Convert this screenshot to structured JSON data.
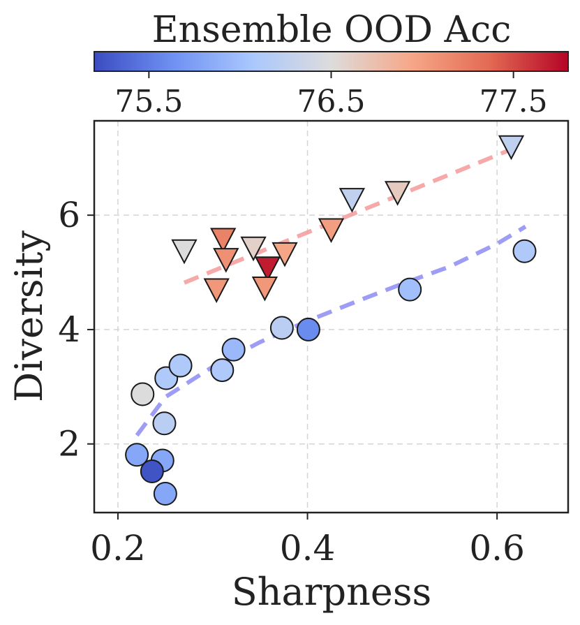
{
  "chart_data": {
    "type": "scatter",
    "xlabel": "Sharpness",
    "ylabel": "Diversity",
    "xlim": [
      0.175,
      0.675
    ],
    "ylim": [
      0.8,
      7.65
    ],
    "xticks": [
      0.2,
      0.4,
      0.6
    ],
    "xtick_labels": [
      "0.2",
      "0.4",
      "0.6"
    ],
    "yticks": [
      2,
      4,
      6
    ],
    "ytick_labels": [
      "2",
      "4",
      "6"
    ],
    "grid": true,
    "colorbar": {
      "title": "Ensemble OOD Acc",
      "min": 75.2,
      "max": 77.8,
      "ticks": [
        75.5,
        76.5,
        77.5
      ],
      "tick_labels": [
        "75.5",
        "76.5",
        "77.5"
      ],
      "colormap": [
        "#3b4cc0",
        "#6f91f3",
        "#aac7fd",
        "#dddcdc",
        "#f6a889",
        "#e36a53",
        "#b40426"
      ]
    },
    "series": [
      {
        "name": "circles",
        "marker": "circle",
        "trend_color": "#8c8cf5",
        "trend": [
          [
            0.22,
            2.15
          ],
          [
            0.25,
            2.82
          ],
          [
            0.3,
            3.35
          ],
          [
            0.35,
            3.78
          ],
          [
            0.4,
            4.15
          ],
          [
            0.45,
            4.48
          ],
          [
            0.5,
            4.8
          ],
          [
            0.55,
            5.1
          ],
          [
            0.6,
            5.5
          ],
          [
            0.63,
            5.8
          ]
        ],
        "points": [
          {
            "x": 0.226,
            "y": 2.87,
            "acc": 76.5
          },
          {
            "x": 0.251,
            "y": 3.15,
            "acc": 76.1
          },
          {
            "x": 0.266,
            "y": 3.37,
            "acc": 76.1
          },
          {
            "x": 0.31,
            "y": 3.29,
            "acc": 76.1
          },
          {
            "x": 0.322,
            "y": 3.65,
            "acc": 75.95
          },
          {
            "x": 0.373,
            "y": 4.03,
            "acc": 76.2
          },
          {
            "x": 0.401,
            "y": 4.0,
            "acc": 75.6
          },
          {
            "x": 0.249,
            "y": 2.36,
            "acc": 76.2
          },
          {
            "x": 0.22,
            "y": 1.81,
            "acc": 75.8
          },
          {
            "x": 0.247,
            "y": 1.71,
            "acc": 75.8
          },
          {
            "x": 0.236,
            "y": 1.52,
            "acc": 75.25
          },
          {
            "x": 0.25,
            "y": 1.13,
            "acc": 75.8
          },
          {
            "x": 0.508,
            "y": 4.7,
            "acc": 76.0
          },
          {
            "x": 0.629,
            "y": 5.37,
            "acc": 76.1
          }
        ]
      },
      {
        "name": "triangles",
        "marker": "triangle-down",
        "trend_color": "#f49a9a",
        "trend": [
          [
            0.27,
            4.82
          ],
          [
            0.615,
            7.15
          ]
        ],
        "points": [
          {
            "x": 0.27,
            "y": 5.4,
            "acc": 76.5
          },
          {
            "x": 0.311,
            "y": 5.6,
            "acc": 77.2
          },
          {
            "x": 0.314,
            "y": 5.25,
            "acc": 77.1
          },
          {
            "x": 0.343,
            "y": 5.45,
            "acc": 76.6
          },
          {
            "x": 0.376,
            "y": 5.35,
            "acc": 76.95
          },
          {
            "x": 0.358,
            "y": 5.1,
            "acc": 77.7
          },
          {
            "x": 0.304,
            "y": 4.72,
            "acc": 77.05
          },
          {
            "x": 0.355,
            "y": 4.75,
            "acc": 77.05
          },
          {
            "x": 0.425,
            "y": 5.77,
            "acc": 77.0
          },
          {
            "x": 0.447,
            "y": 6.3,
            "acc": 76.25
          },
          {
            "x": 0.495,
            "y": 6.42,
            "acc": 76.65
          },
          {
            "x": 0.615,
            "y": 7.22,
            "acc": 76.25
          }
        ]
      }
    ]
  }
}
